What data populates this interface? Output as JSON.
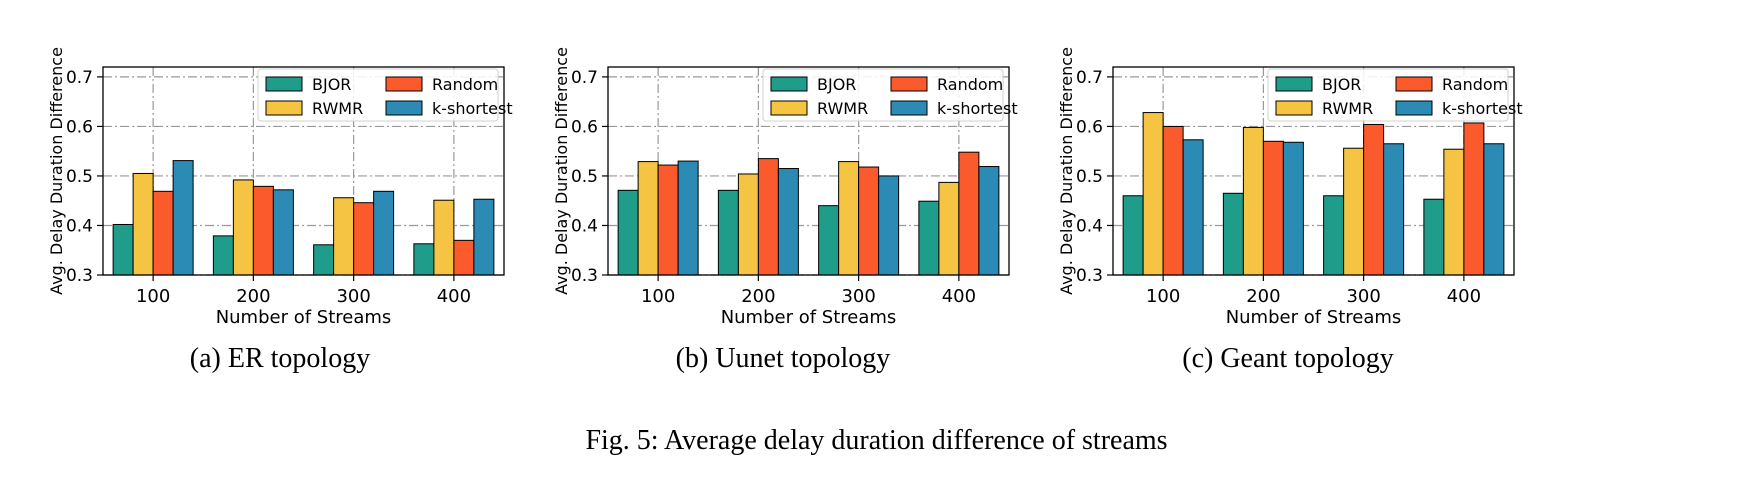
{
  "figure": {
    "caption": "Fig. 5: Average delay duration difference of streams"
  },
  "legend_colors": {
    "BJOR": "#1f9c8a",
    "RWMR": "#f5c443",
    "Random": "#fb5a2d",
    "k-shortest": "#2b8bb5"
  },
  "chart_data": [
    {
      "type": "bar",
      "subcaption": "(a) ER topology",
      "xlabel": "Number of Streams",
      "ylabel": "Avg. Delay Duration Difference",
      "categories": [
        "100",
        "200",
        "300",
        "400"
      ],
      "ylim": [
        0.3,
        0.72
      ],
      "yticks": [
        "0.3",
        "0.4",
        "0.5",
        "0.6",
        "0.7"
      ],
      "grid": true,
      "legend_position": "top-right",
      "series": [
        {
          "name": "BJOR",
          "values": [
            0.402,
            0.379,
            0.361,
            0.363
          ]
        },
        {
          "name": "RWMR",
          "values": [
            0.505,
            0.492,
            0.456,
            0.451
          ]
        },
        {
          "name": "Random",
          "values": [
            0.469,
            0.479,
            0.446,
            0.37
          ]
        },
        {
          "name": "k-shortest",
          "values": [
            0.531,
            0.472,
            0.469,
            0.453
          ]
        }
      ]
    },
    {
      "type": "bar",
      "subcaption": "(b) Uunet topology",
      "xlabel": "Number of Streams",
      "ylabel": "Avg. Delay Duration Difference",
      "categories": [
        "100",
        "200",
        "300",
        "400"
      ],
      "ylim": [
        0.3,
        0.72
      ],
      "yticks": [
        "0.3",
        "0.4",
        "0.5",
        "0.6",
        "0.7"
      ],
      "grid": true,
      "legend_position": "top-right",
      "series": [
        {
          "name": "BJOR",
          "values": [
            0.471,
            0.471,
            0.44,
            0.449
          ]
        },
        {
          "name": "RWMR",
          "values": [
            0.529,
            0.504,
            0.529,
            0.487
          ]
        },
        {
          "name": "Random",
          "values": [
            0.522,
            0.535,
            0.518,
            0.548
          ]
        },
        {
          "name": "k-shortest",
          "values": [
            0.53,
            0.515,
            0.5,
            0.519
          ]
        }
      ]
    },
    {
      "type": "bar",
      "subcaption": "(c) Geant topology",
      "xlabel": "Number of Streams",
      "ylabel": "Avg. Delay Duration Difference",
      "categories": [
        "100",
        "200",
        "300",
        "400"
      ],
      "ylim": [
        0.3,
        0.72
      ],
      "yticks": [
        "0.3",
        "0.4",
        "0.5",
        "0.6",
        "0.7"
      ],
      "grid": true,
      "legend_position": "top-right",
      "series": [
        {
          "name": "BJOR",
          "values": [
            0.46,
            0.465,
            0.46,
            0.453
          ]
        },
        {
          "name": "RWMR",
          "values": [
            0.628,
            0.598,
            0.556,
            0.554
          ]
        },
        {
          "name": "Random",
          "values": [
            0.6,
            0.57,
            0.604,
            0.607
          ]
        },
        {
          "name": "k-shortest",
          "values": [
            0.573,
            0.568,
            0.565,
            0.565
          ]
        }
      ]
    }
  ]
}
